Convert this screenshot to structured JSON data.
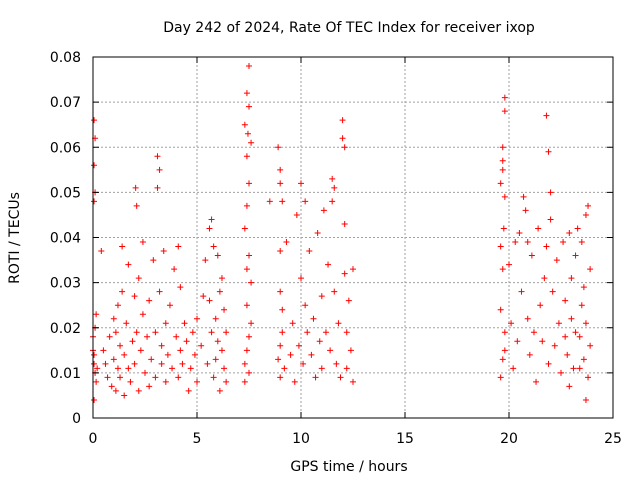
{
  "chart_data": {
    "type": "scatter",
    "title": "Day 242 of 2024, Rate Of TEC Index for receiver ixop",
    "xlabel": "GPS time / hours",
    "ylabel": "ROTI / TECUs",
    "xlim": [
      0,
      25
    ],
    "ylim": [
      0,
      0.08
    ],
    "x_ticks": [
      0,
      5,
      10,
      15,
      20,
      25
    ],
    "x_tick_labels": [
      "0",
      "5",
      "10",
      "15",
      "20",
      "25"
    ],
    "y_ticks": [
      0,
      0.01,
      0.02,
      0.03,
      0.04,
      0.05,
      0.06,
      0.07,
      0.08
    ],
    "y_tick_labels": [
      "0",
      "0.01",
      "0.02",
      "0.03",
      "0.04",
      "0.05",
      "0.06",
      "0.07",
      "0.08"
    ],
    "grid": true,
    "marker": "+",
    "color": "#ff0000",
    "series": [
      {
        "name": "ROTI",
        "points": [
          [
            0.05,
            0.066
          ],
          [
            0.05,
            0.056
          ],
          [
            0.1,
            0.062
          ],
          [
            0.1,
            0.05
          ],
          [
            0.05,
            0.048
          ],
          [
            0.0,
            0.015
          ],
          [
            0.05,
            0.012
          ],
          [
            0.1,
            0.01
          ],
          [
            0.15,
            0.008
          ],
          [
            0.05,
            0.004
          ],
          [
            0.1,
            0.02
          ],
          [
            0.15,
            0.023
          ],
          [
            0.0,
            0.018
          ],
          [
            0.2,
            0.011
          ],
          [
            0.05,
            0.014
          ],
          [
            0.4,
            0.037
          ],
          [
            0.5,
            0.015
          ],
          [
            0.6,
            0.012
          ],
          [
            0.7,
            0.009
          ],
          [
            0.8,
            0.018
          ],
          [
            0.9,
            0.007
          ],
          [
            1.0,
            0.013
          ],
          [
            1.0,
            0.022
          ],
          [
            1.1,
            0.019
          ],
          [
            1.1,
            0.006
          ],
          [
            1.2,
            0.011
          ],
          [
            1.2,
            0.025
          ],
          [
            1.3,
            0.016
          ],
          [
            1.3,
            0.009
          ],
          [
            1.4,
            0.038
          ],
          [
            1.4,
            0.028
          ],
          [
            1.5,
            0.014
          ],
          [
            1.5,
            0.005
          ],
          [
            1.6,
            0.021
          ],
          [
            1.7,
            0.011
          ],
          [
            1.7,
            0.034
          ],
          [
            1.8,
            0.008
          ],
          [
            1.9,
            0.017
          ],
          [
            2.0,
            0.027
          ],
          [
            2.0,
            0.012
          ],
          [
            2.05,
            0.051
          ],
          [
            2.1,
            0.047
          ],
          [
            2.1,
            0.019
          ],
          [
            2.2,
            0.006
          ],
          [
            2.2,
            0.031
          ],
          [
            2.3,
            0.015
          ],
          [
            2.4,
            0.039
          ],
          [
            2.4,
            0.023
          ],
          [
            2.5,
            0.01
          ],
          [
            2.6,
            0.018
          ],
          [
            2.7,
            0.026
          ],
          [
            2.7,
            0.007
          ],
          [
            2.8,
            0.013
          ],
          [
            2.9,
            0.035
          ],
          [
            3.0,
            0.019
          ],
          [
            3.0,
            0.009
          ],
          [
            3.1,
            0.058
          ],
          [
            3.1,
            0.051
          ],
          [
            3.2,
            0.055
          ],
          [
            3.2,
            0.028
          ],
          [
            3.3,
            0.016
          ],
          [
            3.3,
            0.012
          ],
          [
            3.4,
            0.037
          ],
          [
            3.5,
            0.021
          ],
          [
            3.5,
            0.008
          ],
          [
            3.6,
            0.014
          ],
          [
            3.7,
            0.025
          ],
          [
            3.8,
            0.011
          ],
          [
            3.9,
            0.033
          ],
          [
            4.0,
            0.018
          ],
          [
            4.1,
            0.038
          ],
          [
            4.1,
            0.009
          ],
          [
            4.2,
            0.029
          ],
          [
            4.2,
            0.015
          ],
          [
            4.3,
            0.012
          ],
          [
            4.4,
            0.021
          ],
          [
            4.5,
            0.017
          ],
          [
            4.6,
            0.006
          ],
          [
            4.7,
            0.011
          ],
          [
            4.8,
            0.019
          ],
          [
            4.9,
            0.014
          ],
          [
            5.0,
            0.022
          ],
          [
            5.0,
            0.008
          ],
          [
            5.2,
            0.016
          ],
          [
            5.3,
            0.027
          ],
          [
            5.4,
            0.035
          ],
          [
            5.5,
            0.012
          ],
          [
            5.6,
            0.026
          ],
          [
            5.6,
            0.042
          ],
          [
            5.7,
            0.044
          ],
          [
            5.7,
            0.019
          ],
          [
            5.8,
            0.038
          ],
          [
            5.8,
            0.009
          ],
          [
            5.9,
            0.022
          ],
          [
            5.9,
            0.013
          ],
          [
            6.0,
            0.036
          ],
          [
            6.0,
            0.017
          ],
          [
            6.1,
            0.028
          ],
          [
            6.1,
            0.006
          ],
          [
            6.2,
            0.031
          ],
          [
            6.2,
            0.015
          ],
          [
            6.3,
            0.024
          ],
          [
            6.3,
            0.011
          ],
          [
            6.4,
            0.019
          ],
          [
            6.4,
            0.008
          ],
          [
            7.3,
            0.065
          ],
          [
            7.4,
            0.072
          ],
          [
            7.4,
            0.058
          ],
          [
            7.5,
            0.078
          ],
          [
            7.5,
            0.069
          ],
          [
            7.45,
            0.063
          ],
          [
            7.6,
            0.061
          ],
          [
            7.5,
            0.052
          ],
          [
            7.4,
            0.047
          ],
          [
            7.3,
            0.042
          ],
          [
            7.5,
            0.036
          ],
          [
            7.4,
            0.025
          ],
          [
            7.3,
            0.012
          ],
          [
            7.5,
            0.018
          ],
          [
            7.6,
            0.03
          ],
          [
            7.3,
            0.008
          ],
          [
            7.4,
            0.015
          ],
          [
            7.6,
            0.021
          ],
          [
            7.5,
            0.01
          ],
          [
            7.4,
            0.033
          ],
          [
            8.5,
            0.048
          ],
          [
            8.9,
            0.06
          ],
          [
            9.0,
            0.055
          ],
          [
            9.0,
            0.052
          ],
          [
            9.1,
            0.048
          ],
          [
            9.0,
            0.037
          ],
          [
            9.0,
            0.028
          ],
          [
            9.1,
            0.019
          ],
          [
            8.9,
            0.013
          ],
          [
            9.0,
            0.009
          ],
          [
            9.1,
            0.024
          ],
          [
            9.0,
            0.016
          ],
          [
            9.2,
            0.011
          ],
          [
            9.3,
            0.039
          ],
          [
            9.5,
            0.014
          ],
          [
            9.6,
            0.021
          ],
          [
            9.7,
            0.008
          ],
          [
            9.8,
            0.045
          ],
          [
            9.9,
            0.016
          ],
          [
            10.0,
            0.052
          ],
          [
            10.0,
            0.031
          ],
          [
            10.1,
            0.012
          ],
          [
            10.2,
            0.048
          ],
          [
            10.2,
            0.025
          ],
          [
            10.3,
            0.019
          ],
          [
            10.4,
            0.037
          ],
          [
            10.5,
            0.014
          ],
          [
            10.6,
            0.022
          ],
          [
            10.7,
            0.009
          ],
          [
            10.8,
            0.041
          ],
          [
            10.9,
            0.017
          ],
          [
            11.0,
            0.027
          ],
          [
            11.0,
            0.011
          ],
          [
            11.1,
            0.046
          ],
          [
            11.2,
            0.019
          ],
          [
            11.3,
            0.034
          ],
          [
            11.4,
            0.015
          ],
          [
            11.5,
            0.053
          ],
          [
            11.5,
            0.048
          ],
          [
            11.6,
            0.051
          ],
          [
            11.6,
            0.028
          ],
          [
            11.7,
            0.012
          ],
          [
            11.8,
            0.021
          ],
          [
            11.9,
            0.009
          ],
          [
            12.0,
            0.066
          ],
          [
            12.0,
            0.062
          ],
          [
            12.1,
            0.06
          ],
          [
            12.1,
            0.043
          ],
          [
            12.1,
            0.032
          ],
          [
            12.2,
            0.019
          ],
          [
            12.2,
            0.011
          ],
          [
            12.3,
            0.026
          ],
          [
            12.4,
            0.015
          ],
          [
            12.5,
            0.033
          ],
          [
            12.5,
            0.008
          ],
          [
            19.6,
            0.052
          ],
          [
            19.6,
            0.038
          ],
          [
            19.7,
            0.06
          ],
          [
            19.7,
            0.057
          ],
          [
            19.7,
            0.055
          ],
          [
            19.8,
            0.071
          ],
          [
            19.8,
            0.068
          ],
          [
            19.8,
            0.049
          ],
          [
            19.75,
            0.042
          ],
          [
            19.7,
            0.033
          ],
          [
            19.6,
            0.024
          ],
          [
            19.8,
            0.019
          ],
          [
            19.7,
            0.013
          ],
          [
            19.6,
            0.009
          ],
          [
            19.8,
            0.015
          ],
          [
            20.0,
            0.034
          ],
          [
            20.1,
            0.021
          ],
          [
            20.2,
            0.011
          ],
          [
            20.3,
            0.039
          ],
          [
            20.4,
            0.017
          ],
          [
            20.5,
            0.041
          ],
          [
            20.6,
            0.028
          ],
          [
            20.7,
            0.049
          ],
          [
            20.8,
            0.046
          ],
          [
            20.9,
            0.039
          ],
          [
            20.9,
            0.022
          ],
          [
            21.0,
            0.014
          ],
          [
            21.1,
            0.036
          ],
          [
            21.2,
            0.019
          ],
          [
            21.3,
            0.008
          ],
          [
            21.4,
            0.042
          ],
          [
            21.5,
            0.025
          ],
          [
            21.6,
            0.017
          ],
          [
            21.7,
            0.031
          ],
          [
            21.8,
            0.038
          ],
          [
            21.8,
            0.067
          ],
          [
            21.9,
            0.059
          ],
          [
            21.9,
            0.012
          ],
          [
            22.0,
            0.05
          ],
          [
            22.0,
            0.044
          ],
          [
            22.1,
            0.028
          ],
          [
            22.2,
            0.016
          ],
          [
            22.3,
            0.035
          ],
          [
            22.4,
            0.021
          ],
          [
            22.5,
            0.01
          ],
          [
            22.6,
            0.039
          ],
          [
            22.7,
            0.026
          ],
          [
            22.8,
            0.014
          ],
          [
            22.9,
            0.041
          ],
          [
            23.0,
            0.022
          ],
          [
            23.1,
            0.011
          ],
          [
            23.2,
            0.036
          ],
          [
            23.3,
            0.042
          ],
          [
            23.4,
            0.018
          ],
          [
            23.5,
            0.039
          ],
          [
            23.5,
            0.025
          ],
          [
            23.6,
            0.013
          ],
          [
            23.7,
            0.045
          ],
          [
            23.7,
            0.021
          ],
          [
            23.8,
            0.009
          ],
          [
            23.8,
            0.047
          ],
          [
            23.9,
            0.033
          ],
          [
            23.9,
            0.016
          ],
          [
            23.7,
            0.004
          ],
          [
            23.6,
            0.029
          ],
          [
            23.4,
            0.011
          ],
          [
            23.2,
            0.019
          ],
          [
            23.0,
            0.031
          ],
          [
            22.9,
            0.007
          ],
          [
            22.7,
            0.018
          ]
        ]
      }
    ]
  }
}
